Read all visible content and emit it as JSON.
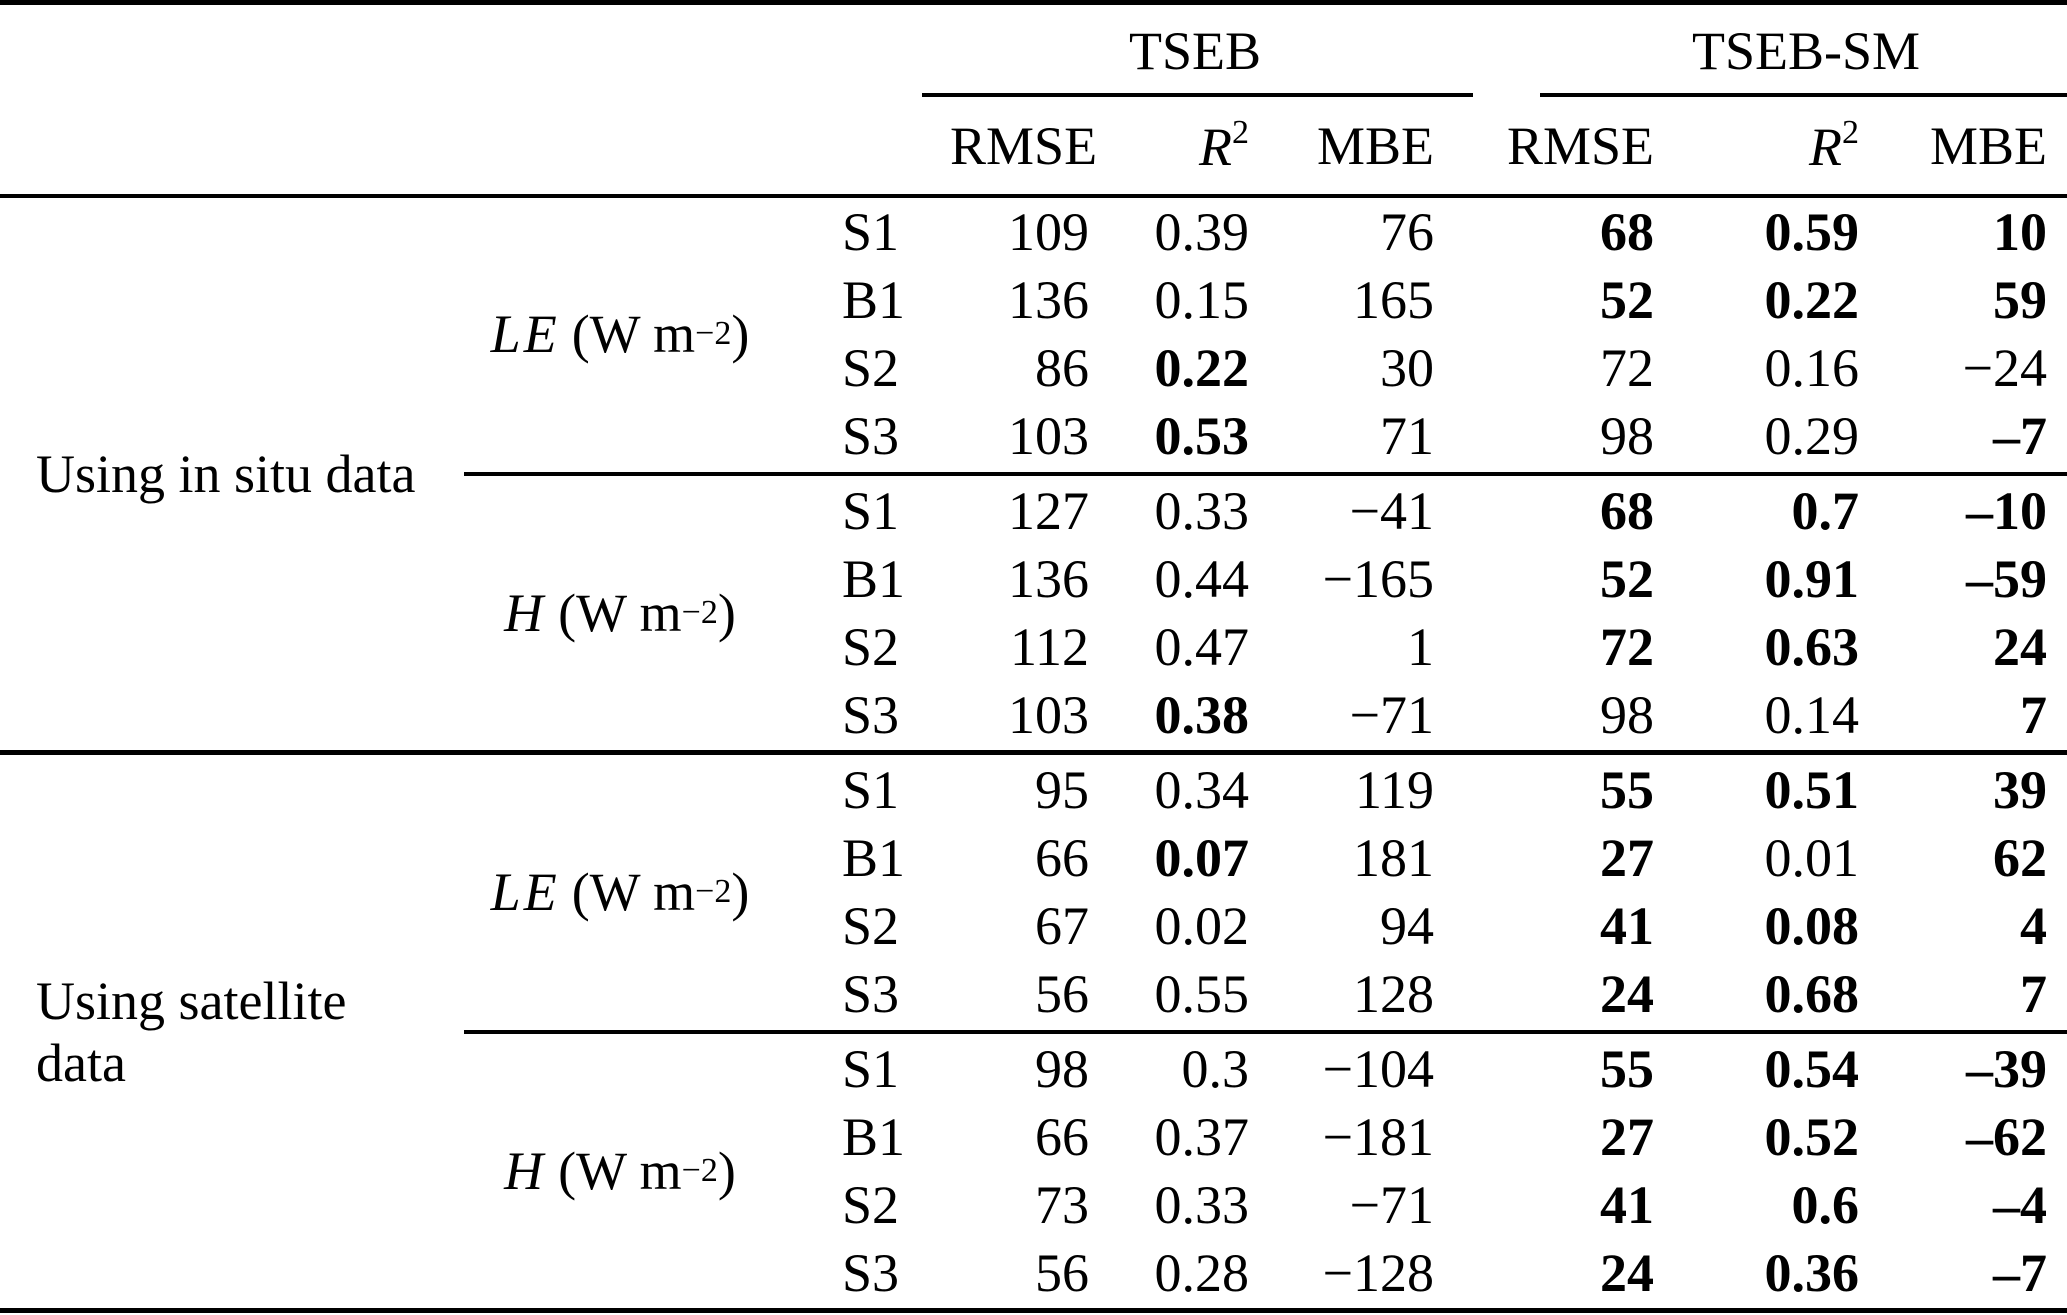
{
  "table": {
    "group_headers": [
      {
        "label": "TSEB"
      },
      {
        "label": "TSEB-SM"
      }
    ],
    "sub_headers": {
      "rmse": "RMSE",
      "r2_base": "R",
      "r2_sup": "2",
      "mbe": "MBE"
    },
    "sections": [
      {
        "label": "Using in situ data",
        "blocks": [
          {
            "variable": {
              "symbol": "LE",
              "unit_open": "(W m",
              "unit_sup": "−2",
              "unit_close": ")"
            },
            "rows": [
              {
                "site": "S1",
                "cells": [
                  {
                    "v": "109"
                  },
                  {
                    "v": "0.39"
                  },
                  {
                    "v": "76"
                  },
                  {
                    "v": "68",
                    "b": true
                  },
                  {
                    "v": "0.59",
                    "b": true
                  },
                  {
                    "v": "10",
                    "b": true
                  }
                ]
              },
              {
                "site": "B1",
                "cells": [
                  {
                    "v": "136"
                  },
                  {
                    "v": "0.15"
                  },
                  {
                    "v": "165"
                  },
                  {
                    "v": "52",
                    "b": true
                  },
                  {
                    "v": "0.22",
                    "b": true
                  },
                  {
                    "v": "59",
                    "b": true
                  }
                ]
              },
              {
                "site": "S2",
                "cells": [
                  {
                    "v": "86"
                  },
                  {
                    "v": "0.22",
                    "b": true
                  },
                  {
                    "v": "30"
                  },
                  {
                    "v": "72"
                  },
                  {
                    "v": "0.16"
                  },
                  {
                    "v": "−24"
                  }
                ]
              },
              {
                "site": "S3",
                "cells": [
                  {
                    "v": "103"
                  },
                  {
                    "v": "0.53",
                    "b": true
                  },
                  {
                    "v": "71"
                  },
                  {
                    "v": "98"
                  },
                  {
                    "v": "0.29"
                  },
                  {
                    "v": "–7",
                    "b": true
                  }
                ]
              }
            ]
          },
          {
            "variable": {
              "symbol": "H",
              "unit_open": "(W m",
              "unit_sup": "−2",
              "unit_close": ")"
            },
            "rows": [
              {
                "site": "S1",
                "cells": [
                  {
                    "v": "127"
                  },
                  {
                    "v": "0.33"
                  },
                  {
                    "v": "−41"
                  },
                  {
                    "v": "68",
                    "b": true
                  },
                  {
                    "v": "0.7",
                    "b": true
                  },
                  {
                    "v": "–10",
                    "b": true
                  }
                ]
              },
              {
                "site": "B1",
                "cells": [
                  {
                    "v": "136"
                  },
                  {
                    "v": "0.44"
                  },
                  {
                    "v": "−165"
                  },
                  {
                    "v": "52",
                    "b": true
                  },
                  {
                    "v": "0.91",
                    "b": true
                  },
                  {
                    "v": "–59",
                    "b": true
                  }
                ]
              },
              {
                "site": "S2",
                "cells": [
                  {
                    "v": "112"
                  },
                  {
                    "v": "0.47"
                  },
                  {
                    "v": "1"
                  },
                  {
                    "v": "72",
                    "b": true
                  },
                  {
                    "v": "0.63",
                    "b": true
                  },
                  {
                    "v": "24",
                    "b": true
                  }
                ]
              },
              {
                "site": "S3",
                "cells": [
                  {
                    "v": "103"
                  },
                  {
                    "v": "0.38",
                    "b": true
                  },
                  {
                    "v": "−71"
                  },
                  {
                    "v": "98"
                  },
                  {
                    "v": "0.14"
                  },
                  {
                    "v": "7",
                    "b": true
                  }
                ]
              }
            ]
          }
        ]
      },
      {
        "label": "Using satellite data",
        "blocks": [
          {
            "variable": {
              "symbol": "LE",
              "unit_open": "(W m",
              "unit_sup": "−2",
              "unit_close": ")"
            },
            "rows": [
              {
                "site": "S1",
                "cells": [
                  {
                    "v": "95"
                  },
                  {
                    "v": "0.34"
                  },
                  {
                    "v": "119"
                  },
                  {
                    "v": "55",
                    "b": true
                  },
                  {
                    "v": "0.51",
                    "b": true
                  },
                  {
                    "v": "39",
                    "b": true
                  }
                ]
              },
              {
                "site": "B1",
                "cells": [
                  {
                    "v": "66"
                  },
                  {
                    "v": "0.07",
                    "b": true
                  },
                  {
                    "v": "181"
                  },
                  {
                    "v": "27",
                    "b": true
                  },
                  {
                    "v": "0.01"
                  },
                  {
                    "v": "62",
                    "b": true
                  }
                ]
              },
              {
                "site": "S2",
                "cells": [
                  {
                    "v": "67"
                  },
                  {
                    "v": "0.02"
                  },
                  {
                    "v": "94"
                  },
                  {
                    "v": "41",
                    "b": true
                  },
                  {
                    "v": "0.08",
                    "b": true
                  },
                  {
                    "v": "4",
                    "b": true
                  }
                ]
              },
              {
                "site": "S3",
                "cells": [
                  {
                    "v": "56"
                  },
                  {
                    "v": "0.55"
                  },
                  {
                    "v": "128"
                  },
                  {
                    "v": "24",
                    "b": true
                  },
                  {
                    "v": "0.68",
                    "b": true
                  },
                  {
                    "v": "7",
                    "b": true
                  }
                ]
              }
            ]
          },
          {
            "variable": {
              "symbol": "H",
              "unit_open": "(W m",
              "unit_sup": "−2",
              "unit_close": ")"
            },
            "rows": [
              {
                "site": "S1",
                "cells": [
                  {
                    "v": "98"
                  },
                  {
                    "v": "0.3"
                  },
                  {
                    "v": "−104"
                  },
                  {
                    "v": "55",
                    "b": true
                  },
                  {
                    "v": "0.54",
                    "b": true
                  },
                  {
                    "v": "–39",
                    "b": true
                  }
                ]
              },
              {
                "site": "B1",
                "cells": [
                  {
                    "v": "66"
                  },
                  {
                    "v": "0.37"
                  },
                  {
                    "v": "−181"
                  },
                  {
                    "v": "27",
                    "b": true
                  },
                  {
                    "v": "0.52",
                    "b": true
                  },
                  {
                    "v": "–62",
                    "b": true
                  }
                ]
              },
              {
                "site": "S2",
                "cells": [
                  {
                    "v": "73"
                  },
                  {
                    "v": "0.33"
                  },
                  {
                    "v": "−71"
                  },
                  {
                    "v": "41",
                    "b": true
                  },
                  {
                    "v": "0.6",
                    "b": true
                  },
                  {
                    "v": "–4",
                    "b": true
                  }
                ]
              },
              {
                "site": "S3",
                "cells": [
                  {
                    "v": "56"
                  },
                  {
                    "v": "0.28"
                  },
                  {
                    "v": "−128"
                  },
                  {
                    "v": "24",
                    "b": true
                  },
                  {
                    "v": "0.36",
                    "b": true
                  },
                  {
                    "v": "–7",
                    "b": true
                  }
                ]
              }
            ]
          }
        ]
      }
    ]
  }
}
